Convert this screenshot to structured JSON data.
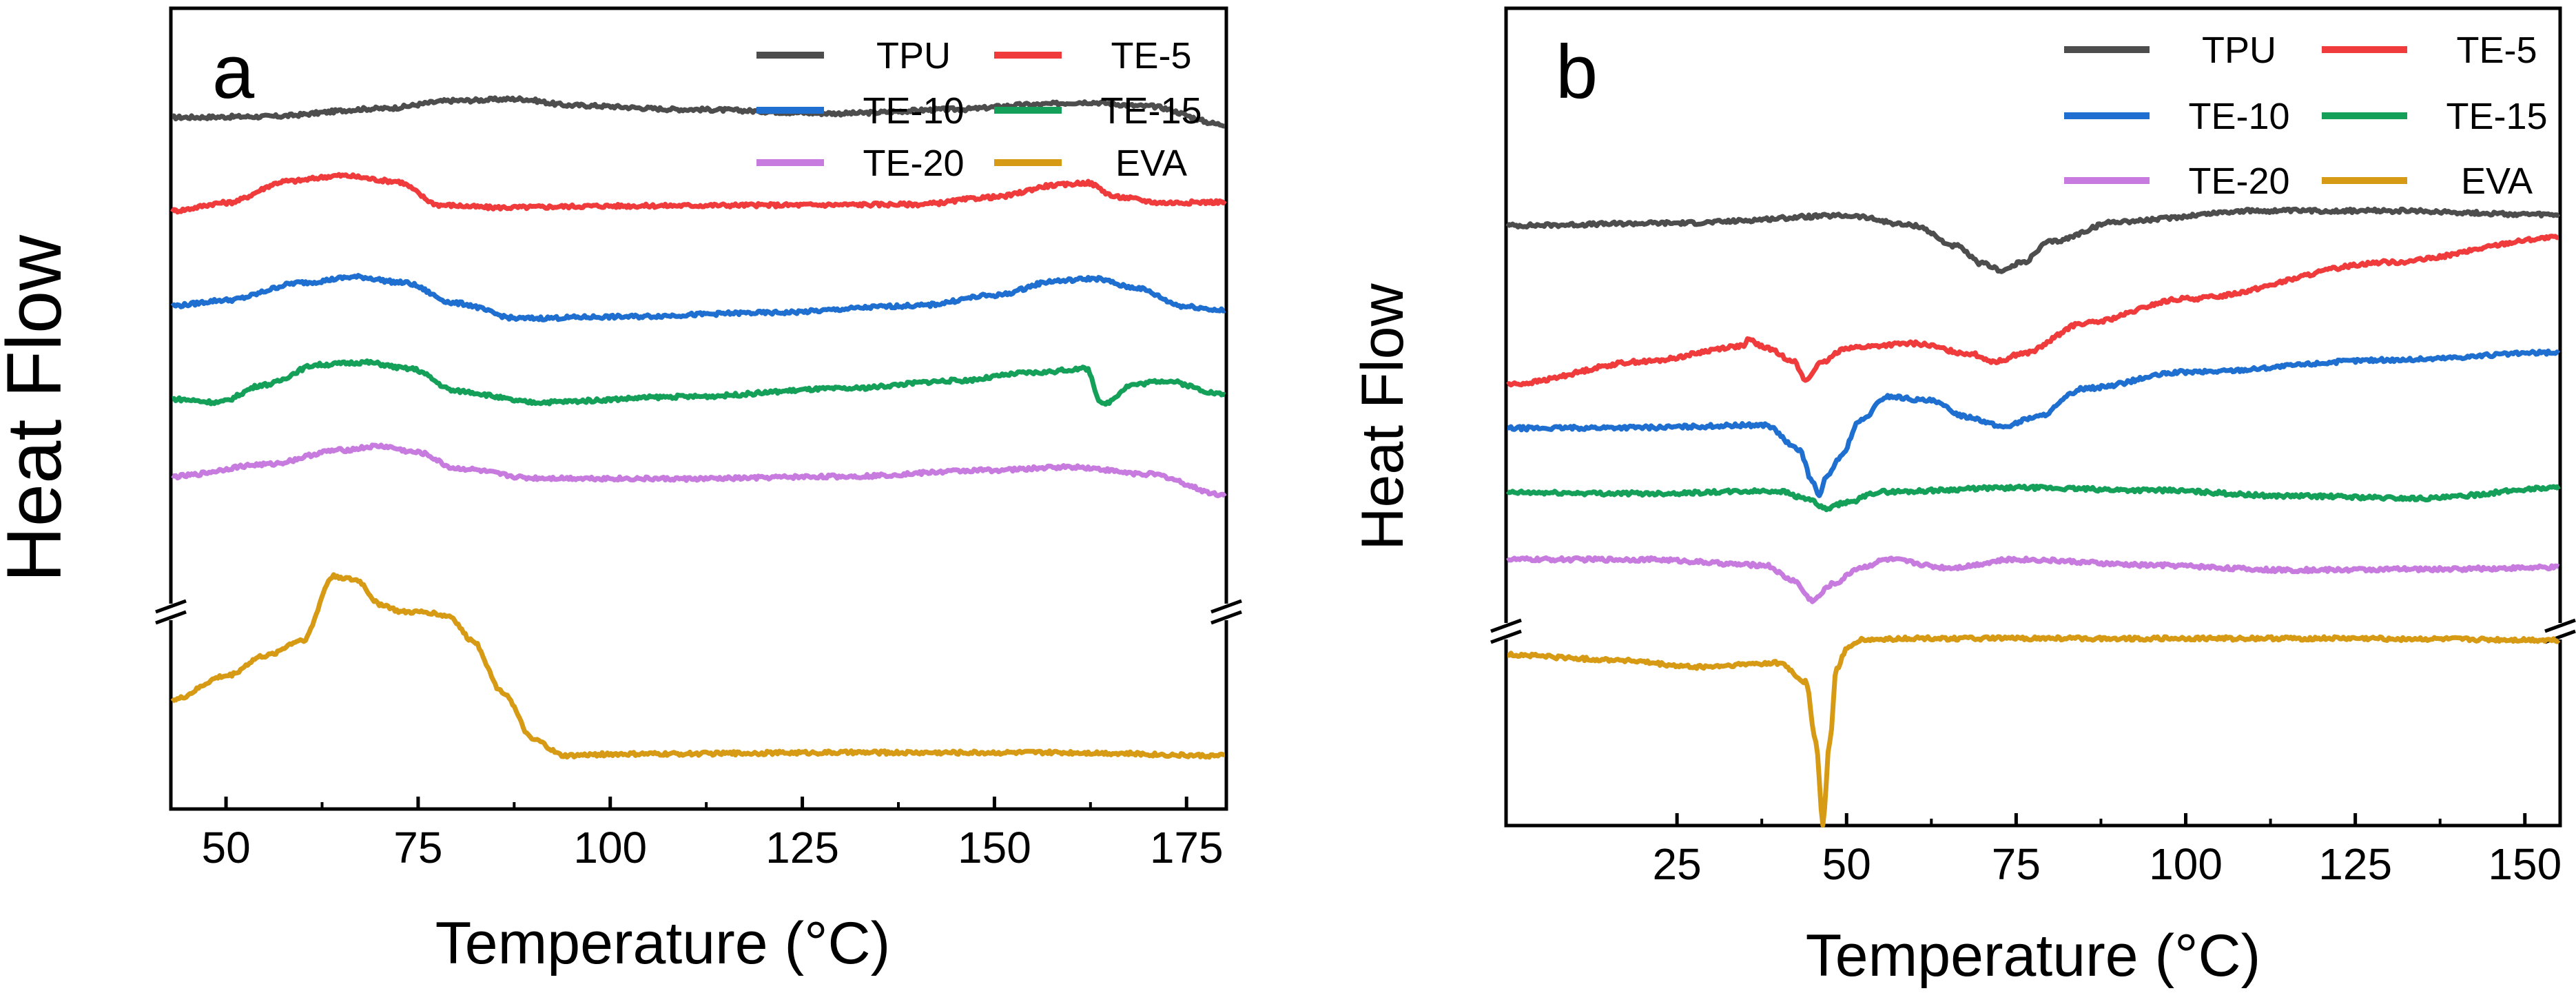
{
  "chart_data": [
    {
      "type": "line",
      "panel_label": "a",
      "xlabel": "Temperature (°C)",
      "ylabel": "Heat Flow",
      "xlim": [
        43,
        180
      ],
      "ylim": [
        0,
        100
      ],
      "xticks": [
        50,
        75,
        100,
        125,
        150,
        175
      ],
      "xtick_labels": [
        "50",
        "75",
        "100",
        "125",
        "150",
        "175"
      ],
      "axis_break": true,
      "legend": {
        "position": "top-right",
        "columns": 2
      },
      "series": [
        {
          "name": "TPU",
          "color": "#4d4d4d",
          "x": [
            43,
            55,
            70,
            80,
            88,
            95,
            110,
            130,
            145,
            155,
            162,
            170,
            180
          ],
          "y": [
            86.5,
            86.6,
            87.6,
            88.6,
            88.8,
            88.0,
            87.5,
            87.0,
            87.5,
            88.1,
            88.4,
            87.9,
            85.6
          ]
        },
        {
          "name": "TE-5",
          "color": "#ef3b3b",
          "x": [
            43,
            50,
            58,
            65,
            72,
            78,
            85,
            100,
            120,
            140,
            150,
            158,
            162,
            166,
            172,
            180
          ],
          "y": [
            74.8,
            75.8,
            78.5,
            79.2,
            78.5,
            75.5,
            75.2,
            75.4,
            75.5,
            75.6,
            76.5,
            78.0,
            78.3,
            76.5,
            75.8,
            75.9
          ]
        },
        {
          "name": "TE-10",
          "color": "#1e6fd0",
          "x": [
            43,
            50,
            60,
            67,
            73,
            80,
            88,
            100,
            120,
            140,
            150,
            158,
            163,
            168,
            175,
            180
          ],
          "y": [
            62.9,
            63.6,
            65.8,
            66.5,
            65.8,
            63.2,
            61.3,
            61.5,
            62.0,
            62.9,
            64.2,
            66.0,
            66.3,
            65.2,
            62.8,
            62.3
          ]
        },
        {
          "name": "TE-15",
          "color": "#15a05a",
          "x": [
            43,
            49,
            55,
            62,
            68,
            74,
            80,
            90,
            110,
            130,
            145,
            155,
            162,
            164,
            168,
            172,
            180
          ],
          "y": [
            51.2,
            50.8,
            53.0,
            55.5,
            55.8,
            55.0,
            52.2,
            50.8,
            51.5,
            52.5,
            53.5,
            54.5,
            55.0,
            50.5,
            53.0,
            53.5,
            51.8
          ]
        },
        {
          "name": "TE-20",
          "color": "#c77bdf",
          "x": [
            43,
            55,
            65,
            70,
            75,
            80,
            90,
            110,
            130,
            150,
            160,
            170,
            180
          ],
          "y": [
            41.5,
            43.0,
            44.8,
            45.3,
            44.5,
            42.5,
            41.3,
            41.2,
            41.5,
            42.3,
            42.7,
            41.8,
            39.2
          ]
        },
        {
          "name": "EVA",
          "color": "#d69a14",
          "x": [
            43,
            50,
            55,
            60,
            64,
            67,
            70,
            73,
            76,
            79,
            82,
            86,
            90,
            94,
            100,
            130,
            160,
            180
          ],
          "y": [
            13.5,
            16.5,
            19.0,
            21.0,
            29.0,
            28.5,
            25.5,
            24.5,
            24.5,
            24.0,
            21.0,
            14.5,
            8.5,
            6.5,
            6.7,
            6.9,
            6.9,
            6.5
          ]
        }
      ]
    },
    {
      "type": "line",
      "panel_label": "b",
      "xlabel": "Temperature (°C)",
      "ylabel": "Heat Flow",
      "xlim": [
        0,
        155
      ],
      "ylim": [
        0,
        100
      ],
      "xticks": [
        25,
        50,
        75,
        100,
        125,
        150
      ],
      "xtick_labels": [
        "25",
        "50",
        "75",
        "100",
        "125",
        "150"
      ],
      "axis_break": true,
      "legend": {
        "position": "top-right",
        "columns": 2
      },
      "series": [
        {
          "name": "TPU",
          "color": "#4d4d4d",
          "x": [
            0,
            25,
            50,
            60,
            66,
            70,
            73,
            76,
            80,
            90,
            110,
            130,
            155
          ],
          "y": [
            73.5,
            73.8,
            74.7,
            73.5,
            71.0,
            68.8,
            68.0,
            69.0,
            71.5,
            74.0,
            75.3,
            75.3,
            74.8
          ]
        },
        {
          "name": "TE-5",
          "color": "#ef3b3b",
          "x": [
            0,
            20,
            35,
            35.5,
            38,
            42,
            44,
            46,
            50,
            60,
            68,
            72,
            76,
            85,
            100,
            130,
            155
          ],
          "y": [
            54.0,
            56.8,
            58.7,
            59.5,
            58.5,
            57.0,
            54.5,
            56.5,
            58.5,
            59.0,
            57.8,
            56.8,
            57.8,
            61.5,
            64.5,
            69.0,
            72.0
          ]
        },
        {
          "name": "TE-10",
          "color": "#1e6fd0",
          "x": [
            0,
            20,
            38,
            43,
            45,
            46,
            47,
            49,
            52,
            56,
            62,
            68,
            73,
            78,
            85,
            100,
            130,
            155
          ],
          "y": [
            48.6,
            48.7,
            49.0,
            46.0,
            42.0,
            40.5,
            42.5,
            45.0,
            49.5,
            52.5,
            52.0,
            50.0,
            48.8,
            50.0,
            53.5,
            55.5,
            57.0,
            57.9
          ]
        },
        {
          "name": "TE-15",
          "color": "#15a05a",
          "x": [
            0,
            20,
            40,
            44,
            47,
            50,
            55,
            75,
            95,
            115,
            135,
            155
          ],
          "y": [
            40.7,
            40.6,
            40.9,
            40.0,
            38.7,
            39.5,
            40.8,
            41.3,
            41.0,
            40.3,
            40.0,
            41.3
          ]
        },
        {
          "name": "TE-20",
          "color": "#c77bdf",
          "x": [
            0,
            20,
            38,
            42,
            45,
            48,
            52,
            56,
            65,
            75,
            95,
            115,
            135,
            155
          ],
          "y": [
            32.5,
            32.5,
            31.8,
            30.0,
            27.5,
            29.5,
            31.5,
            32.5,
            31.5,
            32.5,
            31.8,
            31.2,
            31.3,
            31.5
          ]
        },
        {
          "name": "EVA",
          "color": "#d69a14",
          "x": [
            0,
            15,
            28,
            40,
            44,
            45.5,
            46.5,
            47.5,
            48.5,
            50,
            52,
            60,
            90,
            120,
            155
          ],
          "y": [
            20.8,
            20.2,
            19.3,
            19.8,
            17.5,
            10.0,
            0.0,
            10.0,
            19.0,
            21.5,
            22.6,
            22.8,
            22.8,
            22.8,
            22.6
          ]
        }
      ]
    }
  ]
}
